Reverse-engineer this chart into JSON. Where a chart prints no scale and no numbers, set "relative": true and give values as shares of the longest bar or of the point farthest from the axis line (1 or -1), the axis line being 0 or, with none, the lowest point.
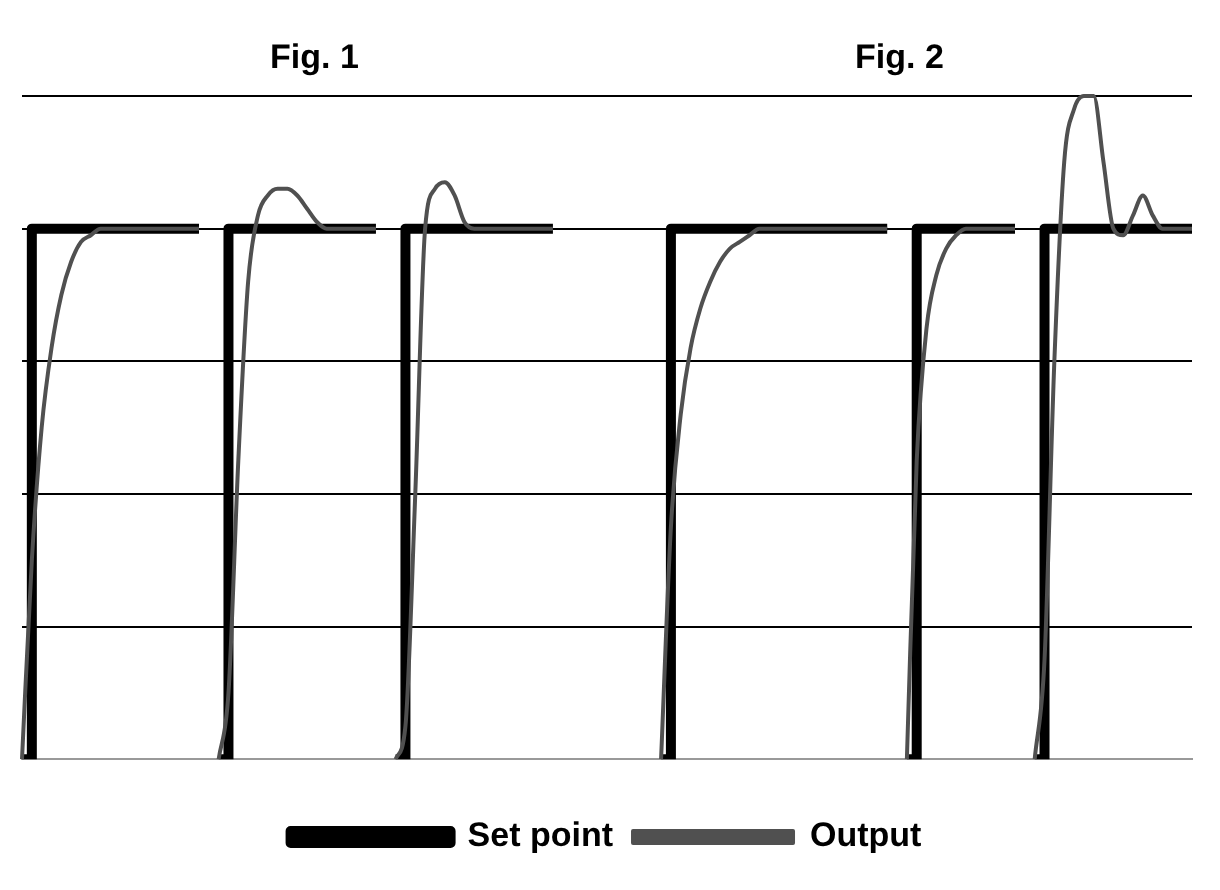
{
  "chart_data": {
    "type": "line",
    "relative": true,
    "grid": "y",
    "legend": "bottom",
    "marker": "none",
    "annotations": [
      "Fig. 1",
      "Fig. 2"
    ],
    "categories": [
      null,
      null,
      null,
      null,
      null,
      null,
      null,
      null,
      null,
      null,
      null,
      null,
      null,
      null,
      null,
      null,
      null,
      null,
      null,
      null,
      null,
      null,
      null,
      null,
      null,
      null,
      null,
      null,
      null,
      null,
      null,
      null,
      null,
      null,
      null,
      null,
      null,
      null,
      null,
      null,
      null,
      null,
      null,
      null,
      null,
      null,
      null,
      null,
      null,
      null,
      null,
      null,
      null,
      null,
      null,
      null,
      null,
      null,
      null,
      null,
      null,
      null,
      null,
      null,
      null,
      null,
      null,
      null,
      null,
      null,
      null,
      null,
      null,
      null,
      null,
      null,
      null,
      null,
      null,
      null,
      null,
      null,
      null,
      null,
      null,
      null,
      null,
      null,
      null,
      null,
      null,
      null,
      null,
      null,
      null,
      null,
      null,
      null,
      null,
      null,
      null,
      null,
      null,
      null,
      null,
      null,
      null,
      null,
      null,
      null,
      null,
      null,
      null,
      null,
      null,
      null,
      null,
      null,
      null,
      null
    ],
    "series": [
      {
        "name": "Set point",
        "type": "step",
        "color": "#000000",
        "values": [
          0,
          0.8,
          0.8,
          0.8,
          0.8,
          0.8,
          0.8,
          0.8,
          0.8,
          0.8,
          0.8,
          0.8,
          0.8,
          0.8,
          0.8,
          0.8,
          0.8,
          0.8,
          0.8,
          null,
          0,
          0.8,
          0.8,
          0.8,
          0.8,
          0.8,
          0.8,
          0.8,
          0.8,
          0.8,
          0.8,
          0.8,
          0.8,
          0.8,
          0.8,
          0.8,
          0.8,
          null,
          0,
          0.8,
          0.8,
          0.8,
          0.8,
          0.8,
          0.8,
          0.8,
          0.8,
          0.8,
          0.8,
          0.8,
          0.8,
          0.8,
          0.8,
          0.8,
          0.8,
          null,
          null,
          null,
          null,
          null,
          null,
          null,
          null,
          null,
          null,
          0,
          0.8,
          0.8,
          0.8,
          0.8,
          0.8,
          0.8,
          0.8,
          0.8,
          0.8,
          0.8,
          0.8,
          0.8,
          0.8,
          0.8,
          0.8,
          0.8,
          0.8,
          0.8,
          0.8,
          0.8,
          0.8,
          0.8,
          0.8,
          null,
          0,
          0.8,
          0.8,
          0.8,
          0.8,
          0.8,
          0.8,
          0.8,
          0.8,
          0.8,
          0.8,
          0.8,
          null,
          0,
          0.8,
          0.8,
          0.8,
          0.8,
          0.8,
          0.8,
          0.8,
          0.8,
          0.8,
          0.8,
          0.8,
          0.8,
          0.8,
          0.8,
          0.8,
          0.8
        ]
      },
      {
        "name": "Output",
        "color": "#505050",
        "values": [
          0,
          0.3,
          0.5,
          0.62,
          0.7,
          0.75,
          0.78,
          0.79,
          0.8,
          0.8,
          0.8,
          0.8,
          0.8,
          0.8,
          0.8,
          0.8,
          0.8,
          0.8,
          0.8,
          null,
          0,
          0.1,
          0.45,
          0.72,
          0.82,
          0.85,
          0.86,
          0.86,
          0.85,
          0.83,
          0.81,
          0.8,
          0.8,
          0.8,
          0.8,
          0.8,
          0.8,
          null,
          0,
          0.05,
          0.4,
          0.8,
          0.86,
          0.87,
          0.85,
          0.81,
          0.8,
          0.8,
          0.8,
          0.8,
          0.8,
          0.8,
          0.8,
          0.8,
          0.8,
          null,
          null,
          null,
          null,
          null,
          null,
          null,
          null,
          null,
          null,
          0,
          0.35,
          0.52,
          0.62,
          0.68,
          0.72,
          0.75,
          0.77,
          0.78,
          0.79,
          0.8,
          0.8,
          0.8,
          0.8,
          0.8,
          0.8,
          0.8,
          0.8,
          0.8,
          0.8,
          0.8,
          0.8,
          0.8,
          0.8,
          null,
          0,
          0.45,
          0.65,
          0.73,
          0.77,
          0.79,
          0.8,
          0.8,
          0.8,
          0.8,
          0.8,
          0.8,
          null,
          0,
          0.15,
          0.6,
          0.9,
          0.98,
          1.0,
          1.0,
          0.9,
          0.8,
          0.79,
          0.82,
          0.85,
          0.82,
          0.8,
          0.8,
          0.8,
          0.8
        ]
      }
    ]
  }
}
